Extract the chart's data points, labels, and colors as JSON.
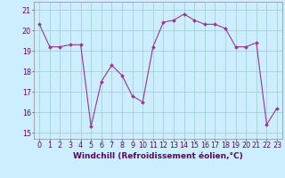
{
  "x": [
    0,
    1,
    2,
    3,
    4,
    5,
    6,
    7,
    8,
    9,
    10,
    11,
    12,
    13,
    14,
    15,
    16,
    17,
    18,
    19,
    20,
    21,
    22,
    23
  ],
  "y": [
    20.3,
    19.2,
    19.2,
    19.3,
    19.3,
    15.3,
    17.5,
    18.3,
    17.8,
    16.8,
    16.5,
    19.2,
    20.4,
    20.5,
    20.8,
    20.5,
    20.3,
    20.3,
    20.1,
    19.2,
    19.2,
    19.4,
    15.4,
    16.2
  ],
  "line_color": "#993399",
  "marker_color": "#993399",
  "bg_color": "#cceeff",
  "grid_color": "#99cccc",
  "xlabel": "Windchill (Refroidissement éolien,°C)",
  "xlim": [
    -0.5,
    23.5
  ],
  "ylim": [
    14.7,
    21.4
  ],
  "yticks": [
    15,
    16,
    17,
    18,
    19,
    20,
    21
  ],
  "xticks": [
    0,
    1,
    2,
    3,
    4,
    5,
    6,
    7,
    8,
    9,
    10,
    11,
    12,
    13,
    14,
    15,
    16,
    17,
    18,
    19,
    20,
    21,
    22,
    23
  ],
  "title_color": "#660066",
  "axis_color": "#9999aa",
  "tick_color": "#660066",
  "label_fontsize": 6.5,
  "tick_fontsize": 5.8
}
